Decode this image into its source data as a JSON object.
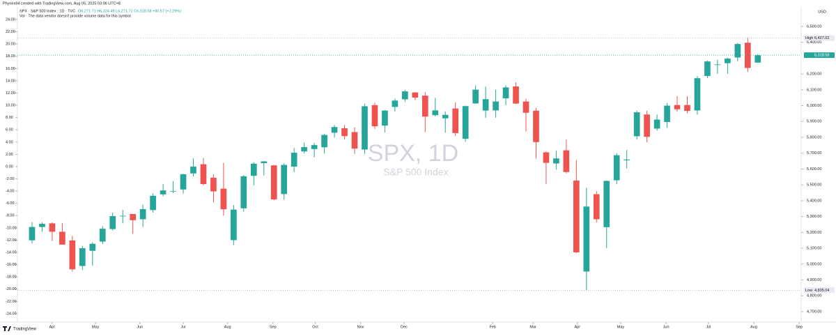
{
  "header": {
    "credit": "Phynex94 created with TradingView.com, Aug 05, 2025 03:06 UTC+8",
    "symbol": "SPX · S&P 500 Index · 1D · TVC",
    "ohlc": "O6,271.71 H6,324.49 L6,271.71 C6,318.58 +80.57 (+1.29%)",
    "volume_note": "Vol · The data vendor doesn't provide volume data for this symbol.",
    "currency": "USD",
    "brand": "TradingView"
  },
  "chart_data": {
    "type": "candlestick",
    "watermark": "SPX, 1D",
    "watermark_subtitle": "S&P 500 Index",
    "up_color": "#26a69a",
    "down_color": "#ef5350",
    "open": [
      5150,
      5234,
      5257,
      5204,
      5149,
      4988,
      5084,
      5142,
      5221,
      5305,
      5316,
      5283,
      5341,
      5440,
      5460,
      5471,
      5572,
      5630,
      5545,
      5476,
      5151,
      5352,
      5557,
      5637,
      5623,
      5442,
      5615,
      5711,
      5726,
      5737,
      5829,
      5857,
      5833,
      5723,
      6003,
      5874,
      5992,
      6040,
      6083,
      6063,
      5940,
      5920,
      5982,
      5791,
      6014,
      5969,
      5970,
      6046,
      6121,
      6026,
      5968,
      5705,
      5635,
      5718,
      5527,
      4953,
      5441,
      5233,
      5529,
      5655,
      5807,
      5944,
      5855,
      5897,
      6004,
      6004,
      5970,
      6187,
      6260,
      6268,
      6304,
      6397,
      6271.71
    ],
    "high": [
      5265,
      5264,
      5263,
      5260,
      5178,
      5114,
      5139,
      5239,
      5325,
      5342,
      5315,
      5375,
      5447,
      5505,
      5524,
      5570,
      5667,
      5669,
      5566,
      5639,
      5372,
      5563,
      5643,
      5651,
      5626,
      5636,
      5733,
      5767,
      5765,
      5822,
      5878,
      5878,
      5863,
      6012,
      6018,
      5972,
      6044,
      6099,
      6086,
      6085,
      6049,
      5964,
      6021,
      6000,
      6128,
      6120,
      6101,
      6128,
      6147,
      6043,
      5986,
      5712,
      5715,
      5786,
      5656,
      5481,
      5460,
      5528,
      5700,
      5720,
      5969,
      5968,
      5944,
      6017,
      6060,
      6059,
      6187,
      6285,
      6290,
      6303,
      6395,
      6427.02,
      6324.49
    ],
    "low": [
      5130,
      5203,
      5146,
      5139,
      4953,
      4963,
      4990,
      5127,
      5211,
      5257,
      5191,
      5234,
      5325,
      5428,
      5448,
      5445,
      5554,
      5497,
      5390,
      5306,
      5120,
      5331,
      5497,
      5560,
      5402,
      5406,
      5581,
      5698,
      5674,
      5697,
      5798,
      5787,
      5696,
      5696,
      5853,
      5831,
      5963,
      6023,
      6035,
      5832,
      5932,
      5829,
      5809,
      5773,
      6012,
      5923,
      5924,
      6003,
      6009,
      5837,
      5666,
      5505,
      5597,
      5572,
      5069,
      4835.04,
      5262,
      5101,
      5505,
      5603,
      5786,
      5768,
      5842,
      5861,
      5963,
      5952,
      5943,
      6174,
      6201,
      6201,
      6281,
      6212,
      6271.71
    ],
    "close": [
      5234,
      5254,
      5204,
      5123,
      4967,
      5100,
      5128,
      5223,
      5303,
      5305,
      5277,
      5347,
      5431,
      5465,
      5460,
      5567,
      5615,
      5505,
      5459,
      5346,
      5344,
      5554,
      5634,
      5648,
      5408,
      5626,
      5703,
      5738,
      5751,
      5815,
      5865,
      5808,
      5729,
      5996,
      5870,
      5969,
      6032,
      6090,
      6051,
      5931,
      5970,
      5942,
      5827,
      5997,
      6101,
      6041,
      6026,
      6115,
      6013,
      5955,
      5770,
      5639,
      5667,
      5581,
      5074,
      5363,
      5283,
      5525,
      5687,
      5660,
      5958,
      5803,
      5912,
      6000,
      5977,
      5967,
      6173,
      6279,
      6260,
      6297,
      6389,
      6238,
      6318.58
    ],
    "xlim": [
      -1.45,
      76.3
    ],
    "xticks": [
      {
        "value": 2,
        "label": "Apr"
      },
      {
        "value": 6.3,
        "label": "May"
      },
      {
        "value": 10.7,
        "label": "Jun"
      },
      {
        "value": 15,
        "label": "Jul"
      },
      {
        "value": 19.4,
        "label": "Aug"
      },
      {
        "value": 23.9,
        "label": "Sep"
      },
      {
        "value": 28.1,
        "label": "Oct"
      },
      {
        "value": 32.6,
        "label": "Nov"
      },
      {
        "value": 36.9,
        "label": "Dec"
      },
      2025,
      {
        "value": 45.7,
        "label": "Feb"
      },
      {
        "value": 49.7,
        "label": "Mar"
      },
      {
        "value": 54.1,
        "label": "Apr"
      },
      {
        "value": 58.4,
        "label": "May"
      },
      {
        "value": 62.9,
        "label": "Jun"
      },
      {
        "value": 67.1,
        "label": "Jul"
      },
      {
        "value": 71.6,
        "label": "Aug"
      },
      {
        "value": 76.1,
        "label": "Sep"
      }
    ],
    "ylim": [
      4634,
      6570
    ],
    "yticks": [
      {
        "value": 6500,
        "label": "6,500.00"
      },
      {
        "value": 6400,
        "label": "6,400.00"
      },
      {
        "value": 6200,
        "label": "6,200.00"
      },
      {
        "value": 6100,
        "label": "6,100.00"
      },
      {
        "value": 6000,
        "label": "6,000.00"
      },
      {
        "value": 5900,
        "label": "5,900.00"
      },
      {
        "value": 5800,
        "label": "5,800.00"
      },
      {
        "value": 5700,
        "label": "5,700.00"
      },
      {
        "value": 5600,
        "label": "5,600.00"
      },
      {
        "value": 5500,
        "label": "5,500.00"
      },
      {
        "value": 5400,
        "label": "5,400.00"
      },
      {
        "value": 5300,
        "label": "5,300.00"
      },
      {
        "value": 5200,
        "label": "5,200.00"
      },
      {
        "value": 5100,
        "label": "5,100.00"
      },
      {
        "value": 5000,
        "label": "5,000.00"
      },
      {
        "value": 4900,
        "label": "4,900.00"
      },
      {
        "value": 4800,
        "label": "4,800.00"
      },
      {
        "value": 4700,
        "label": "4,700.00"
      }
    ],
    "y2lim": [
      -25.37,
      24.68
    ],
    "y2ticks": [
      {
        "value": 24,
        "label": "24.00"
      },
      {
        "value": 22,
        "label": "22.00"
      },
      {
        "value": 20,
        "label": "20.00"
      },
      {
        "value": 18,
        "label": "18.00"
      },
      {
        "value": 16,
        "label": "16.00"
      },
      {
        "value": 14,
        "label": "14.00"
      },
      {
        "value": 12,
        "label": "12.00"
      },
      {
        "value": 10,
        "label": "10.00"
      },
      {
        "value": 8,
        "label": "8.00"
      },
      {
        "value": 6,
        "label": "6.00"
      },
      {
        "value": 4,
        "label": "4.00"
      },
      {
        "value": 2,
        "label": "2.00"
      },
      {
        "value": 0,
        "label": "0.00"
      },
      {
        "value": -2,
        "label": "-2.00"
      },
      {
        "value": -4,
        "label": "-4.00"
      },
      {
        "value": -6,
        "label": "-6.00"
      },
      {
        "value": -8,
        "label": "-8.00"
      },
      {
        "value": -10,
        "label": "-10.00"
      },
      {
        "value": -12,
        "label": "-12.00"
      },
      {
        "value": -14,
        "label": "-14.00"
      },
      {
        "value": -16,
        "label": "-16.00"
      },
      {
        "value": -18,
        "label": "-18.00"
      },
      {
        "value": -20,
        "label": "-20.00"
      },
      {
        "value": -22,
        "label": "-22.00"
      },
      {
        "value": -24,
        "label": "-24.00"
      }
    ],
    "levels": [
      {
        "name": "High",
        "value": 6427.02,
        "label": "6,427.02",
        "color": "#b2b5be",
        "text_color": "#131722",
        "tag": "#e8eaf0"
      },
      {
        "name": "Low",
        "value": 4835.04,
        "label": "4,835.04",
        "color": "#b2b5be",
        "text_color": "#131722",
        "tag": "#e8eaf0"
      },
      {
        "value": 6318.58,
        "label": "6,318.58",
        "color": "#26a69a",
        "text_color": "#ffffff",
        "tag": "#26a69a"
      }
    ]
  }
}
